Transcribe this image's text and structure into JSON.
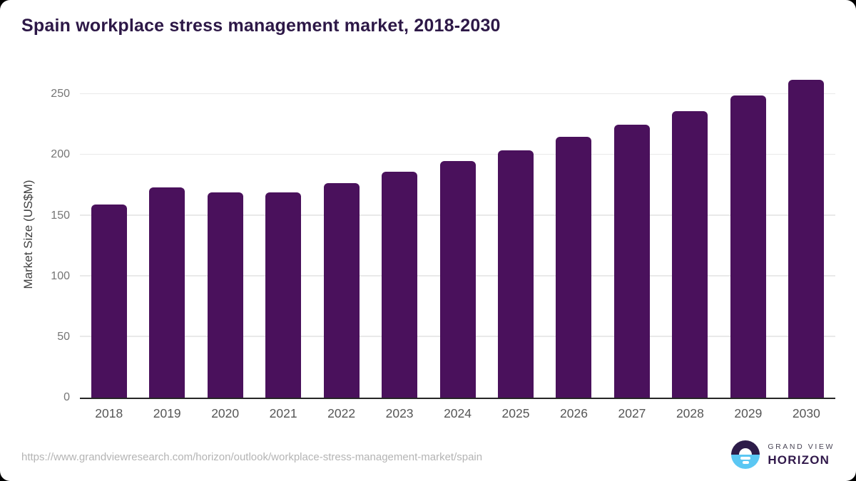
{
  "page": {
    "title": "Spain workplace stress management market, 2018-2030",
    "source_url": "https://www.grandviewresearch.com/horizon/outlook/workplace-stress-management-market/spain"
  },
  "logo": {
    "brand_top": "GRAND VIEW",
    "brand_bottom": "HORIZON"
  },
  "colors": {
    "bar": "#4a115c",
    "title_text": "#2d1847",
    "axis_line": "#262626",
    "gridline": "#e9e9e9",
    "ytick_text": "#757575",
    "xlabel_text": "#565656",
    "url_text": "#b4b4b4",
    "logo_purple": "#2d1c49",
    "logo_blue": "#5bc7f3"
  },
  "chart_data": {
    "type": "bar",
    "title": "Spain workplace stress management market, 2018-2030",
    "xlabel": "",
    "ylabel": "Market Size (US$M)",
    "categories": [
      "2018",
      "2019",
      "2020",
      "2021",
      "2022",
      "2023",
      "2024",
      "2025",
      "2026",
      "2027",
      "2028",
      "2029",
      "2030"
    ],
    "values": [
      159,
      173,
      169,
      169,
      177,
      186,
      195,
      204,
      215,
      225,
      236,
      249,
      262
    ],
    "yticks": [
      0,
      50,
      100,
      150,
      200,
      250
    ],
    "ylim": [
      0,
      269
    ],
    "grid": "horizontal-only",
    "legend_position": "none",
    "bar_color": "#4a115c"
  }
}
